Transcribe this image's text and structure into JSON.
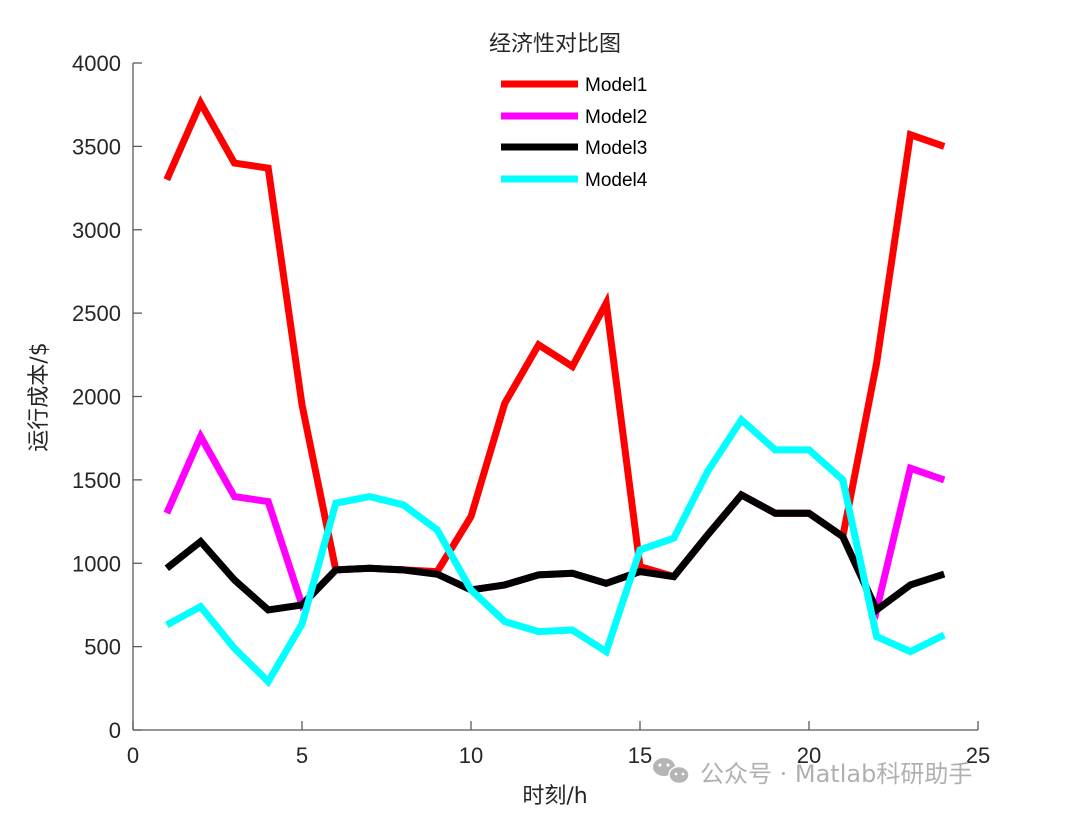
{
  "chart_data": {
    "type": "line",
    "title": "经济性对比图",
    "xlabel": "时刻/h",
    "ylabel": "运行成本/$",
    "xlim": [
      0,
      25
    ],
    "ylim": [
      0,
      4000
    ],
    "xticks": [
      0,
      5,
      10,
      15,
      20,
      25
    ],
    "yticks": [
      0,
      500,
      1000,
      1500,
      2000,
      2500,
      3000,
      3500,
      4000
    ],
    "grid": false,
    "legend_position": "top-center",
    "x": [
      1,
      2,
      3,
      4,
      5,
      6,
      7,
      8,
      9,
      10,
      11,
      12,
      13,
      14,
      15,
      16,
      17,
      18,
      19,
      20,
      21,
      22,
      23,
      24
    ],
    "series": [
      {
        "name": "Model1",
        "color": "#ff0000",
        "values": [
          3300,
          3760,
          3400,
          3370,
          1950,
          960,
          970,
          960,
          950,
          1280,
          1960,
          2310,
          2180,
          2560,
          980,
          920,
          1170,
          1410,
          1300,
          1300,
          1160,
          2200,
          3570,
          3500
        ]
      },
      {
        "name": "Model2",
        "color": "#ff00ff",
        "values": [
          1300,
          1760,
          1400,
          1370,
          750,
          960,
          970,
          960,
          935,
          840,
          870,
          930,
          940,
          880,
          950,
          920,
          1170,
          1410,
          1300,
          1300,
          1160,
          720,
          1570,
          1500
        ]
      },
      {
        "name": "Model3",
        "color": "#000000",
        "values": [
          970,
          1130,
          900,
          720,
          750,
          960,
          970,
          960,
          935,
          840,
          870,
          930,
          940,
          880,
          950,
          920,
          1170,
          1410,
          1300,
          1300,
          1160,
          720,
          870,
          935
        ]
      },
      {
        "name": "Model4",
        "color": "#00ffff",
        "values": [
          630,
          740,
          490,
          290,
          635,
          1360,
          1400,
          1350,
          1200,
          840,
          650,
          590,
          600,
          470,
          1080,
          1150,
          1550,
          1860,
          1680,
          1680,
          1500,
          560,
          470,
          570
        ]
      }
    ]
  },
  "watermark": {
    "icon": "wechat-icon",
    "text": "公众号 · Matlab科研助手"
  }
}
